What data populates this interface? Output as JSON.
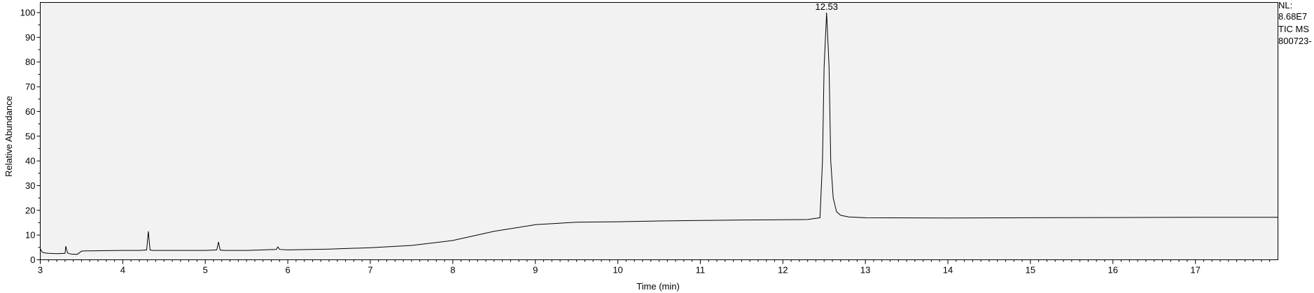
{
  "chart_data": {
    "type": "line",
    "title": "",
    "xlabel": "Time (min)",
    "ylabel": "Relative Abundance",
    "xlim": [
      3.0,
      18.0
    ],
    "ylim": [
      0,
      100
    ],
    "x_ticks": [
      3,
      4,
      5,
      6,
      7,
      8,
      9,
      10,
      11,
      12,
      13,
      14,
      15,
      16,
      17
    ],
    "y_ticks": [
      0,
      10,
      20,
      30,
      40,
      50,
      60,
      70,
      80,
      90,
      100
    ],
    "grid": false,
    "legend": "none",
    "info": [
      "NL:",
      "8.68E7",
      "TIC  MS",
      "800723-"
    ],
    "peak_labels": [
      {
        "x": 12.53,
        "y": 100,
        "text": "12.53"
      }
    ],
    "series": [
      {
        "color": "#000000",
        "x": [
          3.0,
          3.02,
          3.05,
          3.1,
          3.2,
          3.3,
          3.31,
          3.33,
          3.35,
          3.38,
          3.45,
          3.5,
          3.55,
          3.6,
          3.8,
          4.0,
          4.2,
          4.29,
          4.31,
          4.33,
          4.36,
          4.5,
          5.0,
          5.14,
          5.16,
          5.18,
          5.22,
          5.5,
          5.86,
          5.88,
          5.9,
          6.0,
          6.5,
          7.0,
          7.5,
          8.0,
          8.5,
          9.0,
          9.5,
          10.0,
          10.5,
          11.0,
          11.5,
          12.0,
          12.3,
          12.45,
          12.48,
          12.5,
          12.53,
          12.56,
          12.58,
          12.61,
          12.65,
          12.7,
          12.8,
          13.0,
          14.0,
          15.0,
          16.0,
          17.0,
          18.0
        ],
        "values": [
          4.5,
          3.2,
          2.8,
          2.6,
          2.5,
          2.6,
          5.5,
          2.8,
          2.5,
          2.3,
          2.2,
          3.5,
          3.6,
          3.6,
          3.7,
          3.8,
          3.8,
          4.0,
          11.5,
          4.0,
          3.8,
          3.8,
          3.8,
          4.0,
          7.2,
          4.0,
          3.8,
          3.8,
          4.2,
          5.2,
          4.2,
          4.0,
          4.3,
          4.9,
          5.8,
          7.8,
          11.5,
          14.2,
          15.2,
          15.4,
          15.7,
          15.9,
          16.1,
          16.2,
          16.3,
          17.0,
          40.0,
          78.0,
          100.0,
          78.0,
          40.0,
          25.0,
          19.5,
          18.0,
          17.3,
          17.0,
          16.9,
          17.0,
          17.1,
          17.2,
          17.2
        ]
      }
    ]
  }
}
